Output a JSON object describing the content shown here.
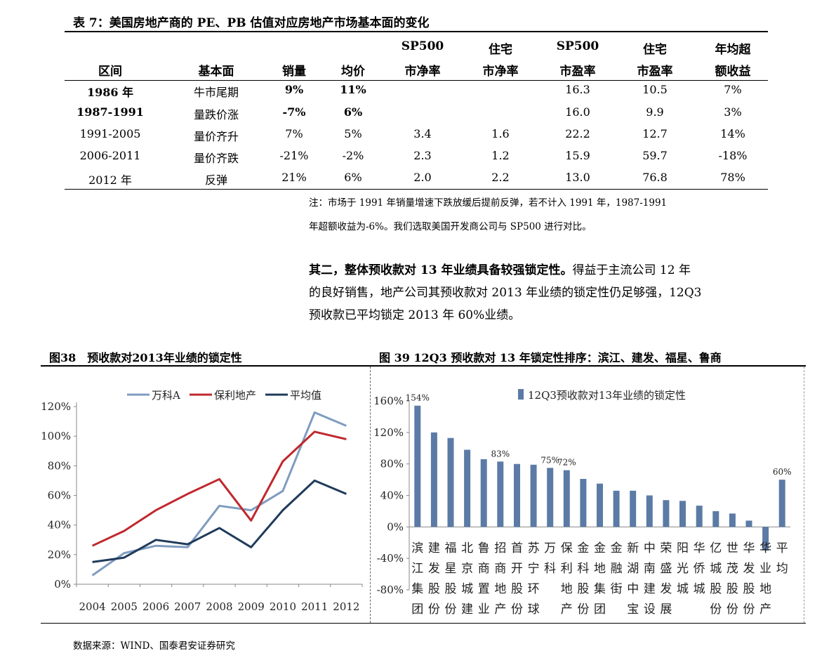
{
  "table": {
    "title": "表 7：美国房地产商的 PE、PB 估值对应房地产市场基本面的变化",
    "headers": [
      {
        "line1": "",
        "line2": "区间"
      },
      {
        "line1": "",
        "line2": "基本面"
      },
      {
        "line1": "",
        "line2": "销量"
      },
      {
        "line1": "",
        "line2": "均价"
      },
      {
        "line1": "SP500",
        "line2": "市净率"
      },
      {
        "line1": "住宅",
        "line2": "市净率"
      },
      {
        "line1": "SP500",
        "line2": "市盈率"
      },
      {
        "line1": "住宅",
        "line2": "市盈率"
      },
      {
        "line1": "年均超",
        "line2": "额收益"
      }
    ],
    "rows": [
      [
        "1986 年",
        "牛市尾期",
        "9%",
        "11%",
        "",
        "",
        "16.3",
        "10.5",
        "7%"
      ],
      [
        "1987-1991",
        "量跌价涨",
        "-7%",
        "6%",
        "",
        "",
        "16.0",
        "9.9",
        "3%"
      ],
      [
        "1991-2005",
        "量价齐升",
        "7%",
        "5%",
        "3.4",
        "1.6",
        "22.2",
        "12.7",
        "14%"
      ],
      [
        "2006-2011",
        "量价齐跌",
        "-21%",
        "-2%",
        "2.3",
        "1.2",
        "15.9",
        "59.7",
        "-18%"
      ],
      [
        "2012 年",
        "反弹",
        "21%",
        "6%",
        "2.0",
        "2.2",
        "13.0",
        "76.8",
        "78%"
      ]
    ],
    "note_line1": "注：市场于 1991 年销量增速下跌放缓后提前反弹，若不计入 1991 年，1987-1991",
    "note_line2": "年超额收益为-6%。我们选取美国开发商公司与 SP500 进行对比。"
  },
  "paragraph": {
    "bold_lead": "其二，整体预收款对 13 年业绩具备较强锁定性。",
    "line1_rest": "得益于主流公司 12 年",
    "line2": "的良好销售，地产公司其预收款对 2013 年业绩的锁定性仍足够强，12Q3",
    "line3": "预收款已平均锁定 2013 年 60%业绩。"
  },
  "figure38": {
    "title": "图38　预收款对2013年业绩的锁定性"
  },
  "figure39": {
    "title": "图 39 12Q3 预收款对 13 年锁定性排序：滨江、建发、福星、鲁商"
  },
  "source": "数据来源：WIND、国泰君安证券研究",
  "chart_data": [
    {
      "type": "line",
      "x": [
        "2004",
        "2005",
        "2006",
        "2007",
        "2008",
        "2009",
        "2010",
        "2011",
        "2012"
      ],
      "ylim": [
        0,
        120
      ],
      "yticks": [
        0,
        20,
        40,
        60,
        80,
        100,
        120
      ],
      "ytick_suffix": "%",
      "legend_position": "top",
      "series": [
        {
          "name": "万科A",
          "color": "#7f9cc0",
          "values": [
            6,
            21,
            26,
            25,
            53,
            50,
            63,
            116,
            107
          ]
        },
        {
          "name": "保利地产",
          "color": "#c0282d",
          "values": [
            26,
            36,
            50,
            61,
            71,
            43,
            83,
            103,
            98
          ]
        },
        {
          "name": "平均值",
          "color": "#1f3b5a",
          "values": [
            15,
            18,
            30,
            27,
            38,
            25,
            50,
            70,
            61
          ]
        }
      ]
    },
    {
      "type": "bar",
      "ylim": [
        -80,
        160
      ],
      "yticks": [
        -80,
        -40,
        0,
        40,
        80,
        120,
        160
      ],
      "ytick_suffix": "%",
      "legend_position": "top",
      "series": [
        {
          "name": "12Q3预收款对13年业绩的锁定性",
          "color": "#5b7ba6",
          "values": [
            154,
            120,
            113,
            98,
            86,
            83,
            80,
            79,
            75,
            72,
            61,
            55,
            46,
            46,
            40,
            34,
            33,
            27,
            20,
            17,
            8,
            -30,
            60
          ]
        }
      ],
      "categories": [
        "滨江集团",
        "建发股份",
        "福星股份",
        "北京城建",
        "鲁商置业",
        "招商地产",
        "首开股份",
        "苏宁环球",
        "万科",
        "保利地产",
        "金科股份",
        "金地集团",
        "金融街",
        "新湖中宝",
        "中南建设",
        "荣盛发展",
        "阳光城",
        "华侨城",
        "亿城股份",
        "世茂股份",
        "华发股份",
        "华业地产",
        "平均"
      ],
      "data_labels": [
        {
          "index": 0,
          "text": "154%"
        },
        {
          "index": 5,
          "text": "83%"
        },
        {
          "index": 8,
          "text": "75%"
        },
        {
          "index": 9,
          "text": "72%"
        },
        {
          "index": 22,
          "text": "60%"
        }
      ]
    }
  ]
}
